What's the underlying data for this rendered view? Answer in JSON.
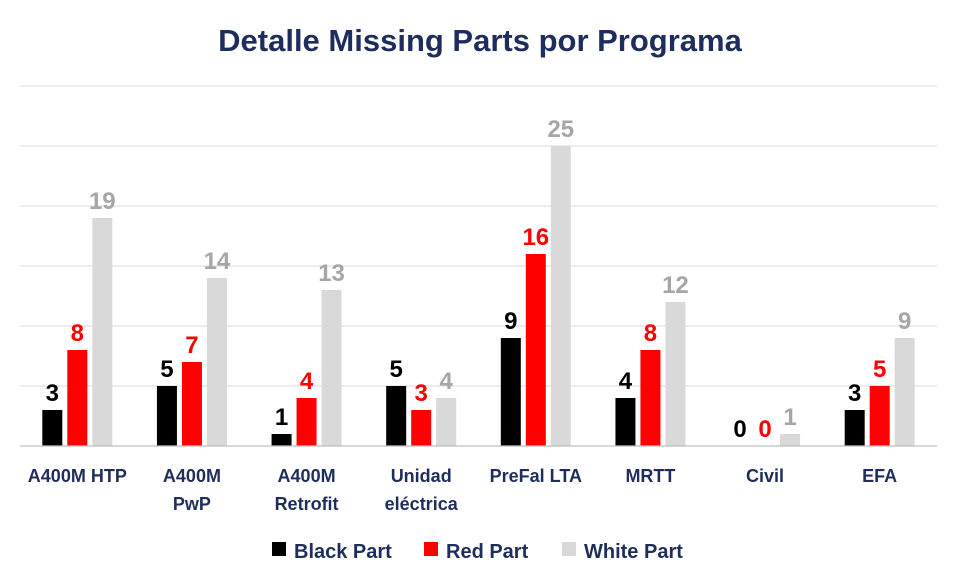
{
  "chart_data": {
    "type": "bar",
    "title": "Detalle Missing Parts por Programa",
    "xlabel": "",
    "ylabel": "",
    "ylim": [
      0,
      30
    ],
    "grid": true,
    "legend_position": "bottom",
    "categories": [
      [
        "A400M HTP"
      ],
      [
        "A400M",
        "PwP"
      ],
      [
        "A400M",
        "Retrofit"
      ],
      [
        "Unidad",
        "eléctrica"
      ],
      [
        "PreFal LTA"
      ],
      [
        "MRTT"
      ],
      [
        "Civil"
      ],
      [
        "EFA"
      ]
    ],
    "series": [
      {
        "name": "Black Part",
        "color": "#000000",
        "label_color": "#000000",
        "values": [
          3,
          5,
          1,
          5,
          9,
          4,
          0,
          3
        ]
      },
      {
        "name": "Red Part",
        "color": "#ff0000",
        "label_color": "#ff0000",
        "values": [
          8,
          7,
          4,
          3,
          16,
          8,
          0,
          5
        ]
      },
      {
        "name": "White Part",
        "color": "#d9d9d9",
        "label_color": "#a6a6a6",
        "values": [
          19,
          14,
          13,
          4,
          25,
          12,
          1,
          9
        ]
      }
    ]
  }
}
